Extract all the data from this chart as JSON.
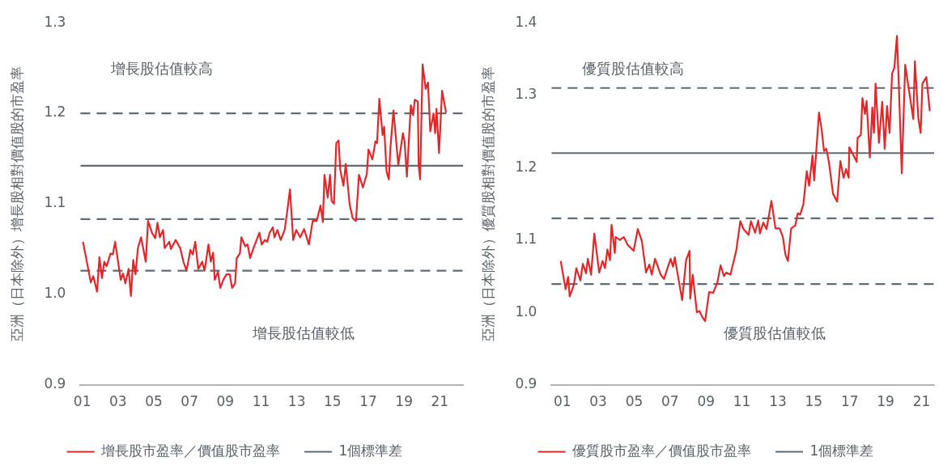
{
  "chart_data": [
    {
      "type": "line",
      "ylabel": "亞洲（日本除外）增長股相對價值股的市盈率",
      "xlim": [
        2000.9,
        2022.3
      ],
      "xticks": [
        {
          "value": 2001,
          "label": "01"
        },
        {
          "value": 2003,
          "label": "03"
        },
        {
          "value": 2005,
          "label": "05"
        },
        {
          "value": 2007,
          "label": "07"
        },
        {
          "value": 2009,
          "label": "09"
        },
        {
          "value": 2011,
          "label": "11"
        },
        {
          "value": 2013,
          "label": "13"
        },
        {
          "value": 2015,
          "label": "15"
        },
        {
          "value": 2017,
          "label": "17"
        },
        {
          "value": 2019,
          "label": "19"
        },
        {
          "value": 2021,
          "label": "21"
        }
      ],
      "ylim": [
        0.9,
        1.3
      ],
      "yticks": [
        {
          "value": 0.9,
          "label": "0.9"
        },
        {
          "value": 1.0,
          "label": "1.0"
        },
        {
          "value": 1.1,
          "label": "1.1"
        },
        {
          "value": 1.2,
          "label": "1.2"
        },
        {
          "value": 1.3,
          "label": "1.3"
        }
      ],
      "grid": false,
      "legend": "bottom",
      "annotations": [
        "增長股估值較高",
        "增長股估值較低"
      ],
      "ref_lines": [
        {
          "axis": "y",
          "value": 1.2,
          "color": "#5f6b75",
          "line_style": "dashed"
        },
        {
          "axis": "y",
          "value": 1.142,
          "color": "#5f6b75",
          "line_style": "solid",
          "label": "1個標準差"
        },
        {
          "axis": "y",
          "value": 1.083,
          "color": "#5f6b75",
          "line_style": "dashed"
        },
        {
          "axis": "y",
          "value": 1.026,
          "color": "#5f6b75",
          "line_style": "dashed"
        }
      ],
      "series": [
        {
          "name": "增長股市盈率／價值股市盈率",
          "color": "#e3262a",
          "x": [
            2001.04,
            2001.39,
            2001.48,
            2001.61,
            2001.83,
            2001.96,
            2002.1,
            2002.23,
            2002.36,
            2002.58,
            2002.71,
            2002.84,
            2003.15,
            2003.28,
            2003.41,
            2003.59,
            2003.72,
            2003.85,
            2003.98,
            2004.11,
            2004.29,
            2004.55,
            2004.68,
            2004.9,
            2005.08,
            2005.21,
            2005.34,
            2005.52,
            2005.61,
            2005.87,
            2005.96,
            2006.22,
            2006.48,
            2006.66,
            2006.83,
            2007.05,
            2007.18,
            2007.32,
            2007.49,
            2007.71,
            2007.84,
            2008.06,
            2008.19,
            2008.32,
            2008.41,
            2008.59,
            2008.72,
            2008.89,
            2009.07,
            2009.25,
            2009.38,
            2009.55,
            2009.64,
            2009.82,
            2009.9,
            2010.12,
            2010.25,
            2010.39,
            2010.56,
            2010.91,
            2011.04,
            2011.22,
            2011.35,
            2011.48,
            2011.66,
            2011.75,
            2011.92,
            2012.1,
            2012.32,
            2012.45,
            2012.62,
            2012.8,
            2012.97,
            2013.19,
            2013.41,
            2013.68,
            2013.89,
            2014.11,
            2014.33,
            2014.46,
            2014.55,
            2014.73,
            2014.86,
            2014.95,
            2015.08,
            2015.21,
            2015.34,
            2015.43,
            2015.61,
            2015.74,
            2015.96,
            2016.13,
            2016.31,
            2016.48,
            2016.7,
            2016.92,
            2017.01,
            2017.23,
            2017.4,
            2017.49,
            2017.62,
            2017.8,
            2017.89,
            2018.02,
            2018.15,
            2018.24,
            2018.41,
            2018.68,
            2018.94,
            2019.03,
            2019.16,
            2019.38,
            2019.51,
            2019.6,
            2019.77,
            2019.82,
            2019.9,
            2020.04,
            2020.21,
            2020.34,
            2020.47,
            2020.65,
            2020.74,
            2020.82,
            2020.96,
            2021.13,
            2021.35
          ],
          "values": [
            1.058,
            1.022,
            1.013,
            1.02,
            1.003,
            1.041,
            1.018,
            1.036,
            1.031,
            1.045,
            1.044,
            1.058,
            1.016,
            1.023,
            1.012,
            1.028,
            0.998,
            1.038,
            1.022,
            1.051,
            1.063,
            1.036,
            1.081,
            1.068,
            1.062,
            1.079,
            1.063,
            1.071,
            1.051,
            1.058,
            1.05,
            1.06,
            1.051,
            1.036,
            1.026,
            1.049,
            1.044,
            1.058,
            1.028,
            1.036,
            1.026,
            1.055,
            1.036,
            1.046,
            1.016,
            1.025,
            1.007,
            1.016,
            1.022,
            1.022,
            1.007,
            1.012,
            1.04,
            1.045,
            1.063,
            1.053,
            1.055,
            1.04,
            1.05,
            1.068,
            1.055,
            1.06,
            1.058,
            1.068,
            1.074,
            1.063,
            1.071,
            1.06,
            1.071,
            1.089,
            1.116,
            1.06,
            1.071,
            1.063,
            1.072,
            1.055,
            1.081,
            1.081,
            1.098,
            1.08,
            1.132,
            1.107,
            1.132,
            1.103,
            1.1,
            1.167,
            1.17,
            1.138,
            1.12,
            1.144,
            1.099,
            1.084,
            1.081,
            1.132,
            1.118,
            1.133,
            1.16,
            1.149,
            1.169,
            1.167,
            1.216,
            1.176,
            1.185,
            1.136,
            1.127,
            1.162,
            1.203,
            1.143,
            1.178,
            1.169,
            1.13,
            1.209,
            1.198,
            1.215,
            1.213,
            1.142,
            1.127,
            1.254,
            1.227,
            1.234,
            1.18,
            1.2,
            1.178,
            1.205,
            1.156,
            1.225,
            1.201
          ]
        }
      ]
    },
    {
      "type": "line",
      "ylabel": "亞洲（日本除外）優質股相對價值股的市盈率",
      "xlim": [
        2000.4,
        2021.7
      ],
      "xticks": [
        {
          "value": 2001,
          "label": "01"
        },
        {
          "value": 2003,
          "label": "03"
        },
        {
          "value": 2005,
          "label": "05"
        },
        {
          "value": 2007,
          "label": "07"
        },
        {
          "value": 2009,
          "label": "09"
        },
        {
          "value": 2011,
          "label": "11"
        },
        {
          "value": 2013,
          "label": "13"
        },
        {
          "value": 2015,
          "label": "15"
        },
        {
          "value": 2017,
          "label": "17"
        },
        {
          "value": 2019,
          "label": "19"
        },
        {
          "value": 2021,
          "label": "21"
        }
      ],
      "ylim": [
        0.9,
        1.4
      ],
      "yticks": [
        {
          "value": 0.9,
          "label": "0.9"
        },
        {
          "value": 1.0,
          "label": "1.0"
        },
        {
          "value": 1.1,
          "label": "1.1"
        },
        {
          "value": 1.2,
          "label": "1.2"
        },
        {
          "value": 1.3,
          "label": "1.3"
        },
        {
          "value": 1.4,
          "label": "1.4"
        }
      ],
      "grid": false,
      "legend": "bottom",
      "annotations": [
        "優質股估值較高",
        "優質股估值較低"
      ],
      "ref_lines": [
        {
          "axis": "y",
          "value": 1.31,
          "color": "#5f6b75",
          "line_style": "dashed"
        },
        {
          "axis": "y",
          "value": 1.22,
          "color": "#5f6b75",
          "line_style": "solid",
          "label": "1個標準差"
        },
        {
          "axis": "y",
          "value": 1.13,
          "color": "#5f6b75",
          "line_style": "dashed"
        },
        {
          "axis": "y",
          "value": 1.039,
          "color": "#5f6b75",
          "line_style": "dashed"
        }
      ],
      "series": [
        {
          "name": "優質股市盈率／價值股市盈率",
          "color": "#e3262a",
          "x": [
            2000.91,
            2001.18,
            2001.32,
            2001.41,
            2001.64,
            2001.78,
            2002.0,
            2002.14,
            2002.32,
            2002.42,
            2002.6,
            2002.78,
            2003.05,
            2003.24,
            2003.37,
            2003.51,
            2003.65,
            2003.74,
            2003.92,
            2003.97,
            2004.2,
            2004.42,
            2004.65,
            2004.97,
            2005.2,
            2005.43,
            2005.66,
            2005.84,
            2005.98,
            2006.16,
            2006.48,
            2006.66,
            2006.84,
            2007.03,
            2007.16,
            2007.26,
            2007.44,
            2007.67,
            2007.89,
            2008.08,
            2008.12,
            2008.26,
            2008.49,
            2008.63,
            2008.76,
            2008.95,
            2009.17,
            2009.4,
            2009.63,
            2009.81,
            2010.0,
            2010.13,
            2010.36,
            2010.68,
            2010.91,
            2011.09,
            2011.37,
            2011.5,
            2011.73,
            2011.91,
            2012.0,
            2012.19,
            2012.37,
            2012.64,
            2012.87,
            2013.1,
            2013.28,
            2013.42,
            2013.56,
            2013.74,
            2013.97,
            2014.11,
            2014.24,
            2014.42,
            2014.61,
            2014.74,
            2014.93,
            2015.02,
            2015.29,
            2015.43,
            2015.57,
            2015.7,
            2015.84,
            2016.07,
            2016.3,
            2016.48,
            2016.66,
            2016.8,
            2016.94,
            2016.98,
            2017.21,
            2017.39,
            2017.44,
            2017.62,
            2017.71,
            2017.85,
            2017.94,
            2018.12,
            2018.26,
            2018.35,
            2018.44,
            2018.63,
            2018.81,
            2018.95,
            2019.08,
            2019.22,
            2019.36,
            2019.49,
            2019.63,
            2019.72,
            2019.9,
            2020.09,
            2020.54,
            2020.63,
            2020.82,
            2020.95,
            2021.05,
            2021.27,
            2021.46
          ],
          "values": [
            1.071,
            1.032,
            1.049,
            1.022,
            1.038,
            1.061,
            1.044,
            1.067,
            1.054,
            1.074,
            1.052,
            1.109,
            1.055,
            1.071,
            1.061,
            1.087,
            1.072,
            1.121,
            1.082,
            1.104,
            1.1,
            1.104,
            1.093,
            1.085,
            1.115,
            1.098,
            1.055,
            1.066,
            1.052,
            1.074,
            1.052,
            1.046,
            1.06,
            1.074,
            1.063,
            1.076,
            1.05,
            1.017,
            1.072,
            1.085,
            1.019,
            1.052,
            1.0,
            1.002,
            0.995,
            0.988,
            1.028,
            1.027,
            1.041,
            1.065,
            1.05,
            1.055,
            1.052,
            1.085,
            1.126,
            1.115,
            1.107,
            1.126,
            1.11,
            1.127,
            1.109,
            1.124,
            1.115,
            1.154,
            1.116,
            1.116,
            1.104,
            1.08,
            1.071,
            1.116,
            1.12,
            1.137,
            1.135,
            1.149,
            1.195,
            1.175,
            1.217,
            1.182,
            1.276,
            1.254,
            1.223,
            1.226,
            1.208,
            1.164,
            1.153,
            1.209,
            1.186,
            1.198,
            1.186,
            1.228,
            1.217,
            1.208,
            1.241,
            1.245,
            1.296,
            1.274,
            1.292,
            1.214,
            1.283,
            1.248,
            1.316,
            1.234,
            1.291,
            1.226,
            1.285,
            1.248,
            1.33,
            1.338,
            1.382,
            1.325,
            1.192,
            1.342,
            1.267,
            1.347,
            1.269,
            1.248,
            1.316,
            1.325,
            1.278
          ]
        }
      ]
    }
  ]
}
